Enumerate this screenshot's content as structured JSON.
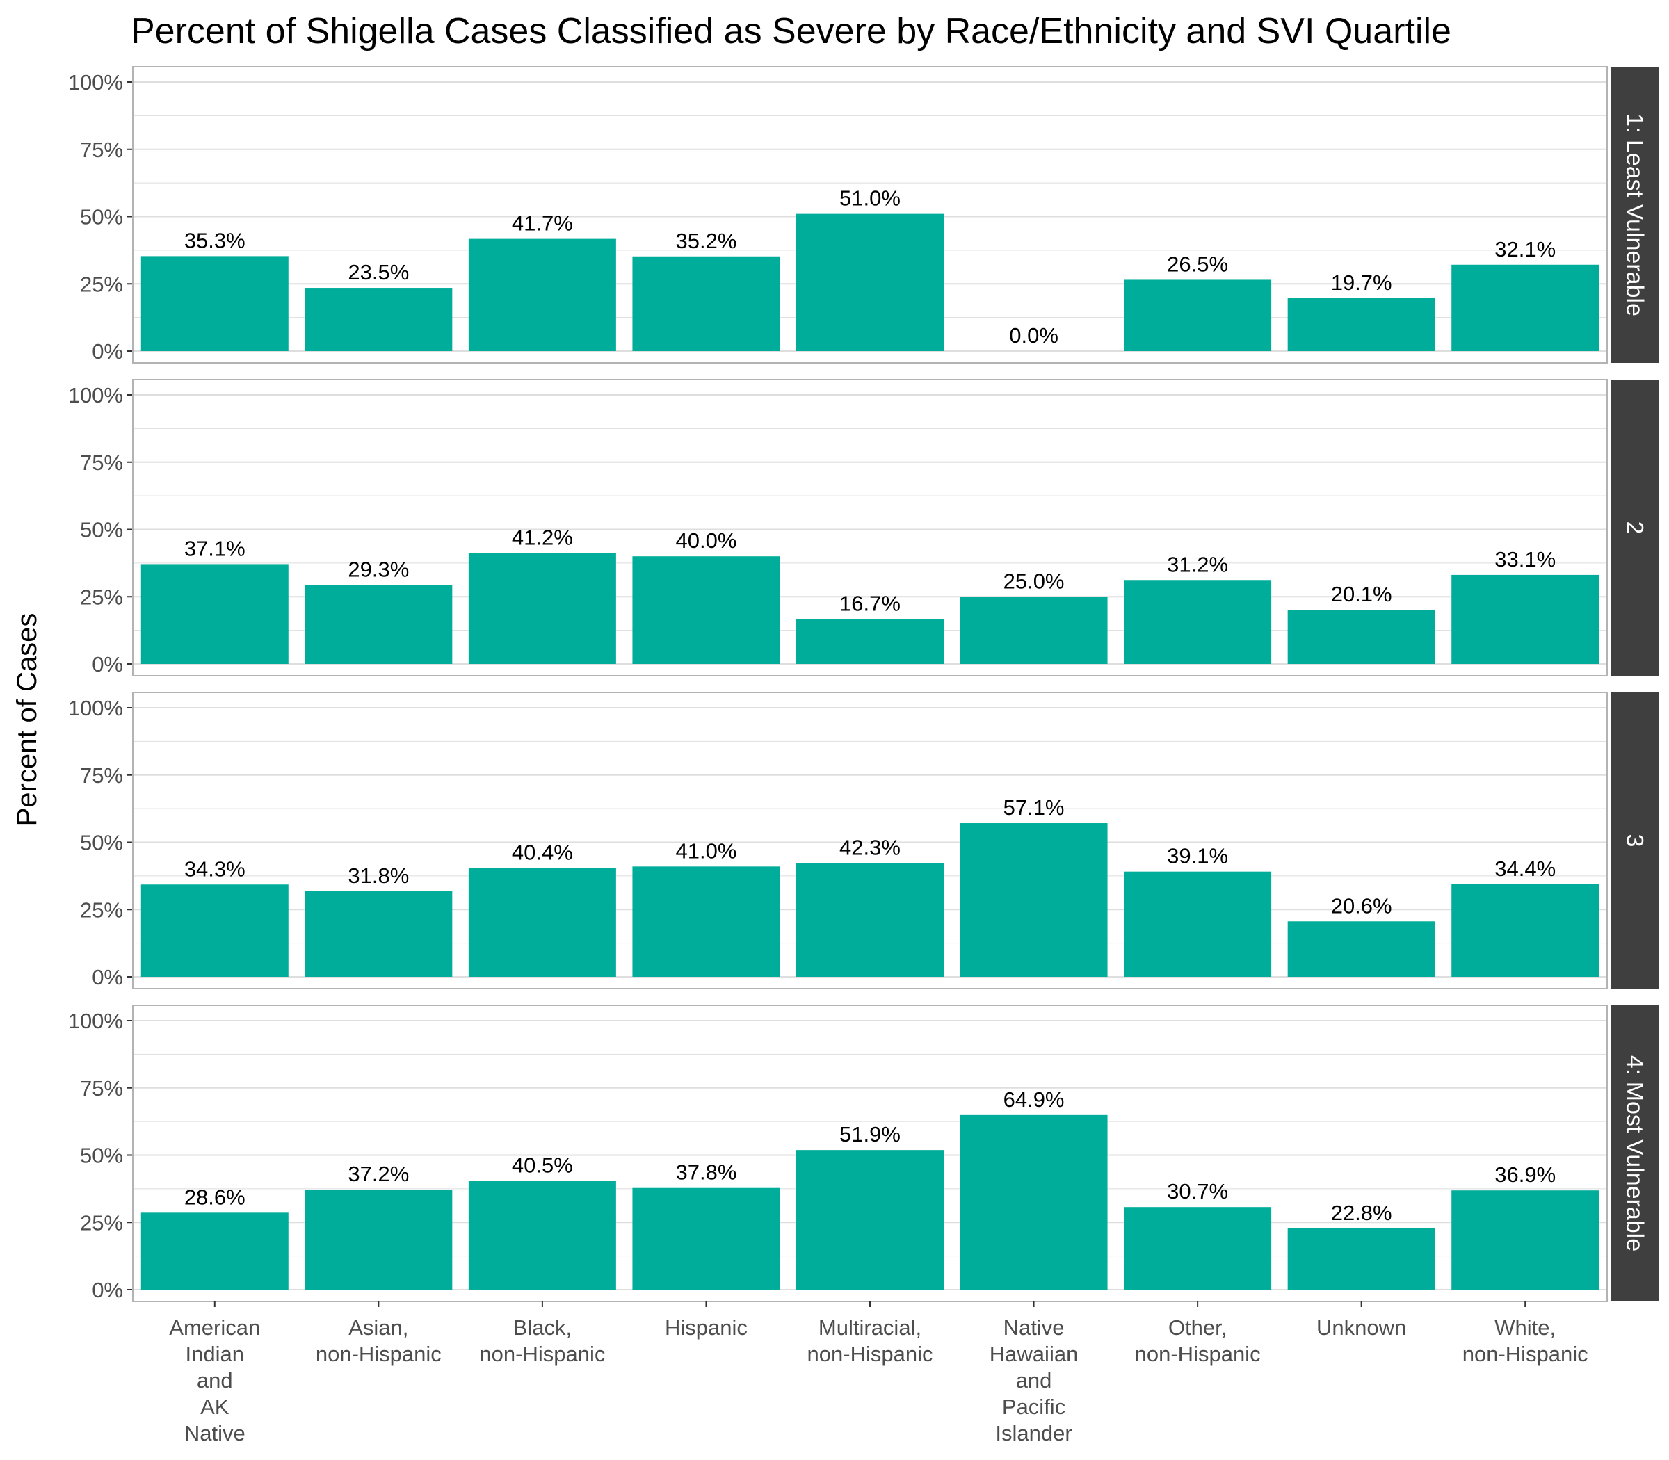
{
  "chart_data": {
    "type": "bar",
    "title": "Percent of Shigella Cases Classified as Severe by Race/Ethnicity and SVI Quartile",
    "ylabel": "Percent of Cases",
    "xlabel": "",
    "ylim": [
      0,
      100
    ],
    "y_ticks": [
      "0%",
      "25%",
      "50%",
      "75%",
      "100%"
    ],
    "grid": true,
    "bar_color": "#00AD9A",
    "strip_color": "#3f3f3f",
    "categories": [
      [
        "American",
        "Indian",
        "and",
        "AK",
        "Native"
      ],
      [
        "Asian,",
        "non-Hispanic"
      ],
      [
        "Black,",
        "non-Hispanic"
      ],
      [
        "Hispanic"
      ],
      [
        "Multiracial,",
        "non-Hispanic"
      ],
      [
        "Native",
        "Hawaiian",
        "and",
        "Pacific",
        "Islander"
      ],
      [
        "Other,",
        "non-Hispanic"
      ],
      [
        "Unknown"
      ],
      [
        "White,",
        "non-Hispanic"
      ]
    ],
    "panels": [
      {
        "label": "1: Least Vulnerable",
        "values": [
          35.3,
          23.5,
          41.7,
          35.2,
          51.0,
          0.0,
          26.5,
          19.7,
          32.1
        ],
        "labels": [
          "35.3%",
          "23.5%",
          "41.7%",
          "35.2%",
          "51.0%",
          "0.0%",
          "26.5%",
          "19.7%",
          "32.1%"
        ]
      },
      {
        "label": "2",
        "values": [
          37.1,
          29.3,
          41.2,
          40.0,
          16.7,
          25.0,
          31.2,
          20.1,
          33.1
        ],
        "labels": [
          "37.1%",
          "29.3%",
          "41.2%",
          "40.0%",
          "16.7%",
          "25.0%",
          "31.2%",
          "20.1%",
          "33.1%"
        ]
      },
      {
        "label": "3",
        "values": [
          34.3,
          31.8,
          40.4,
          41.0,
          42.3,
          57.1,
          39.1,
          20.6,
          34.4
        ],
        "labels": [
          "34.3%",
          "31.8%",
          "40.4%",
          "41.0%",
          "42.3%",
          "57.1%",
          "39.1%",
          "20.6%",
          "34.4%"
        ]
      },
      {
        "label": "4: Most Vulnerable",
        "values": [
          28.6,
          37.2,
          40.5,
          37.8,
          51.9,
          64.9,
          30.7,
          22.8,
          36.9
        ],
        "labels": [
          "28.6%",
          "37.2%",
          "40.5%",
          "37.8%",
          "51.9%",
          "64.9%",
          "30.7%",
          "22.8%",
          "36.9%"
        ]
      }
    ]
  }
}
